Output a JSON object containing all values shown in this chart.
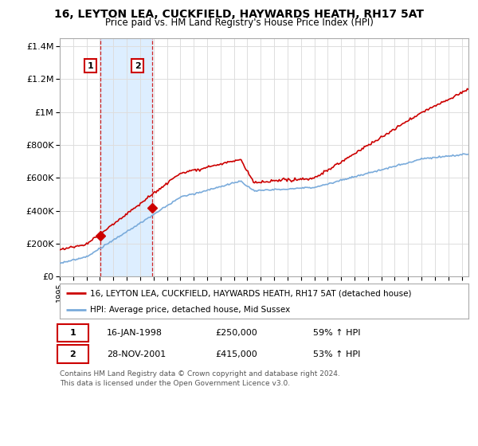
{
  "title": "16, LEYTON LEA, CUCKFIELD, HAYWARDS HEATH, RH17 5AT",
  "subtitle": "Price paid vs. HM Land Registry's House Price Index (HPI)",
  "legend_line1": "16, LEYTON LEA, CUCKFIELD, HAYWARDS HEATH, RH17 5AT (detached house)",
  "legend_line2": "HPI: Average price, detached house, Mid Sussex",
  "transaction1_date": "16-JAN-1998",
  "transaction1_price": "£250,000",
  "transaction1_hpi": "59% ↑ HPI",
  "transaction2_date": "28-NOV-2001",
  "transaction2_price": "£415,000",
  "transaction2_hpi": "53% ↑ HPI",
  "footer1": "Contains HM Land Registry data © Crown copyright and database right 2024.",
  "footer2": "This data is licensed under the Open Government Licence v3.0.",
  "red_color": "#cc0000",
  "blue_color": "#7aabdb",
  "shaded_color": "#ddeeff",
  "background_color": "#ffffff",
  "grid_color": "#dddddd",
  "marker1_x": 1998.04,
  "marker1_y": 250000,
  "marker2_x": 2001.91,
  "marker2_y": 415000,
  "vline1_x": 1998.04,
  "vline2_x": 2001.91,
  "xmin": 1995,
  "xmax": 2025.5,
  "ymin": 0,
  "ymax": 1450000,
  "yticks": [
    0,
    200000,
    400000,
    600000,
    800000,
    1000000,
    1200000,
    1400000
  ],
  "ylabels": [
    "£0",
    "£200K",
    "£400K",
    "£600K",
    "£800K",
    "£1M",
    "£1.2M",
    "£1.4M"
  ]
}
